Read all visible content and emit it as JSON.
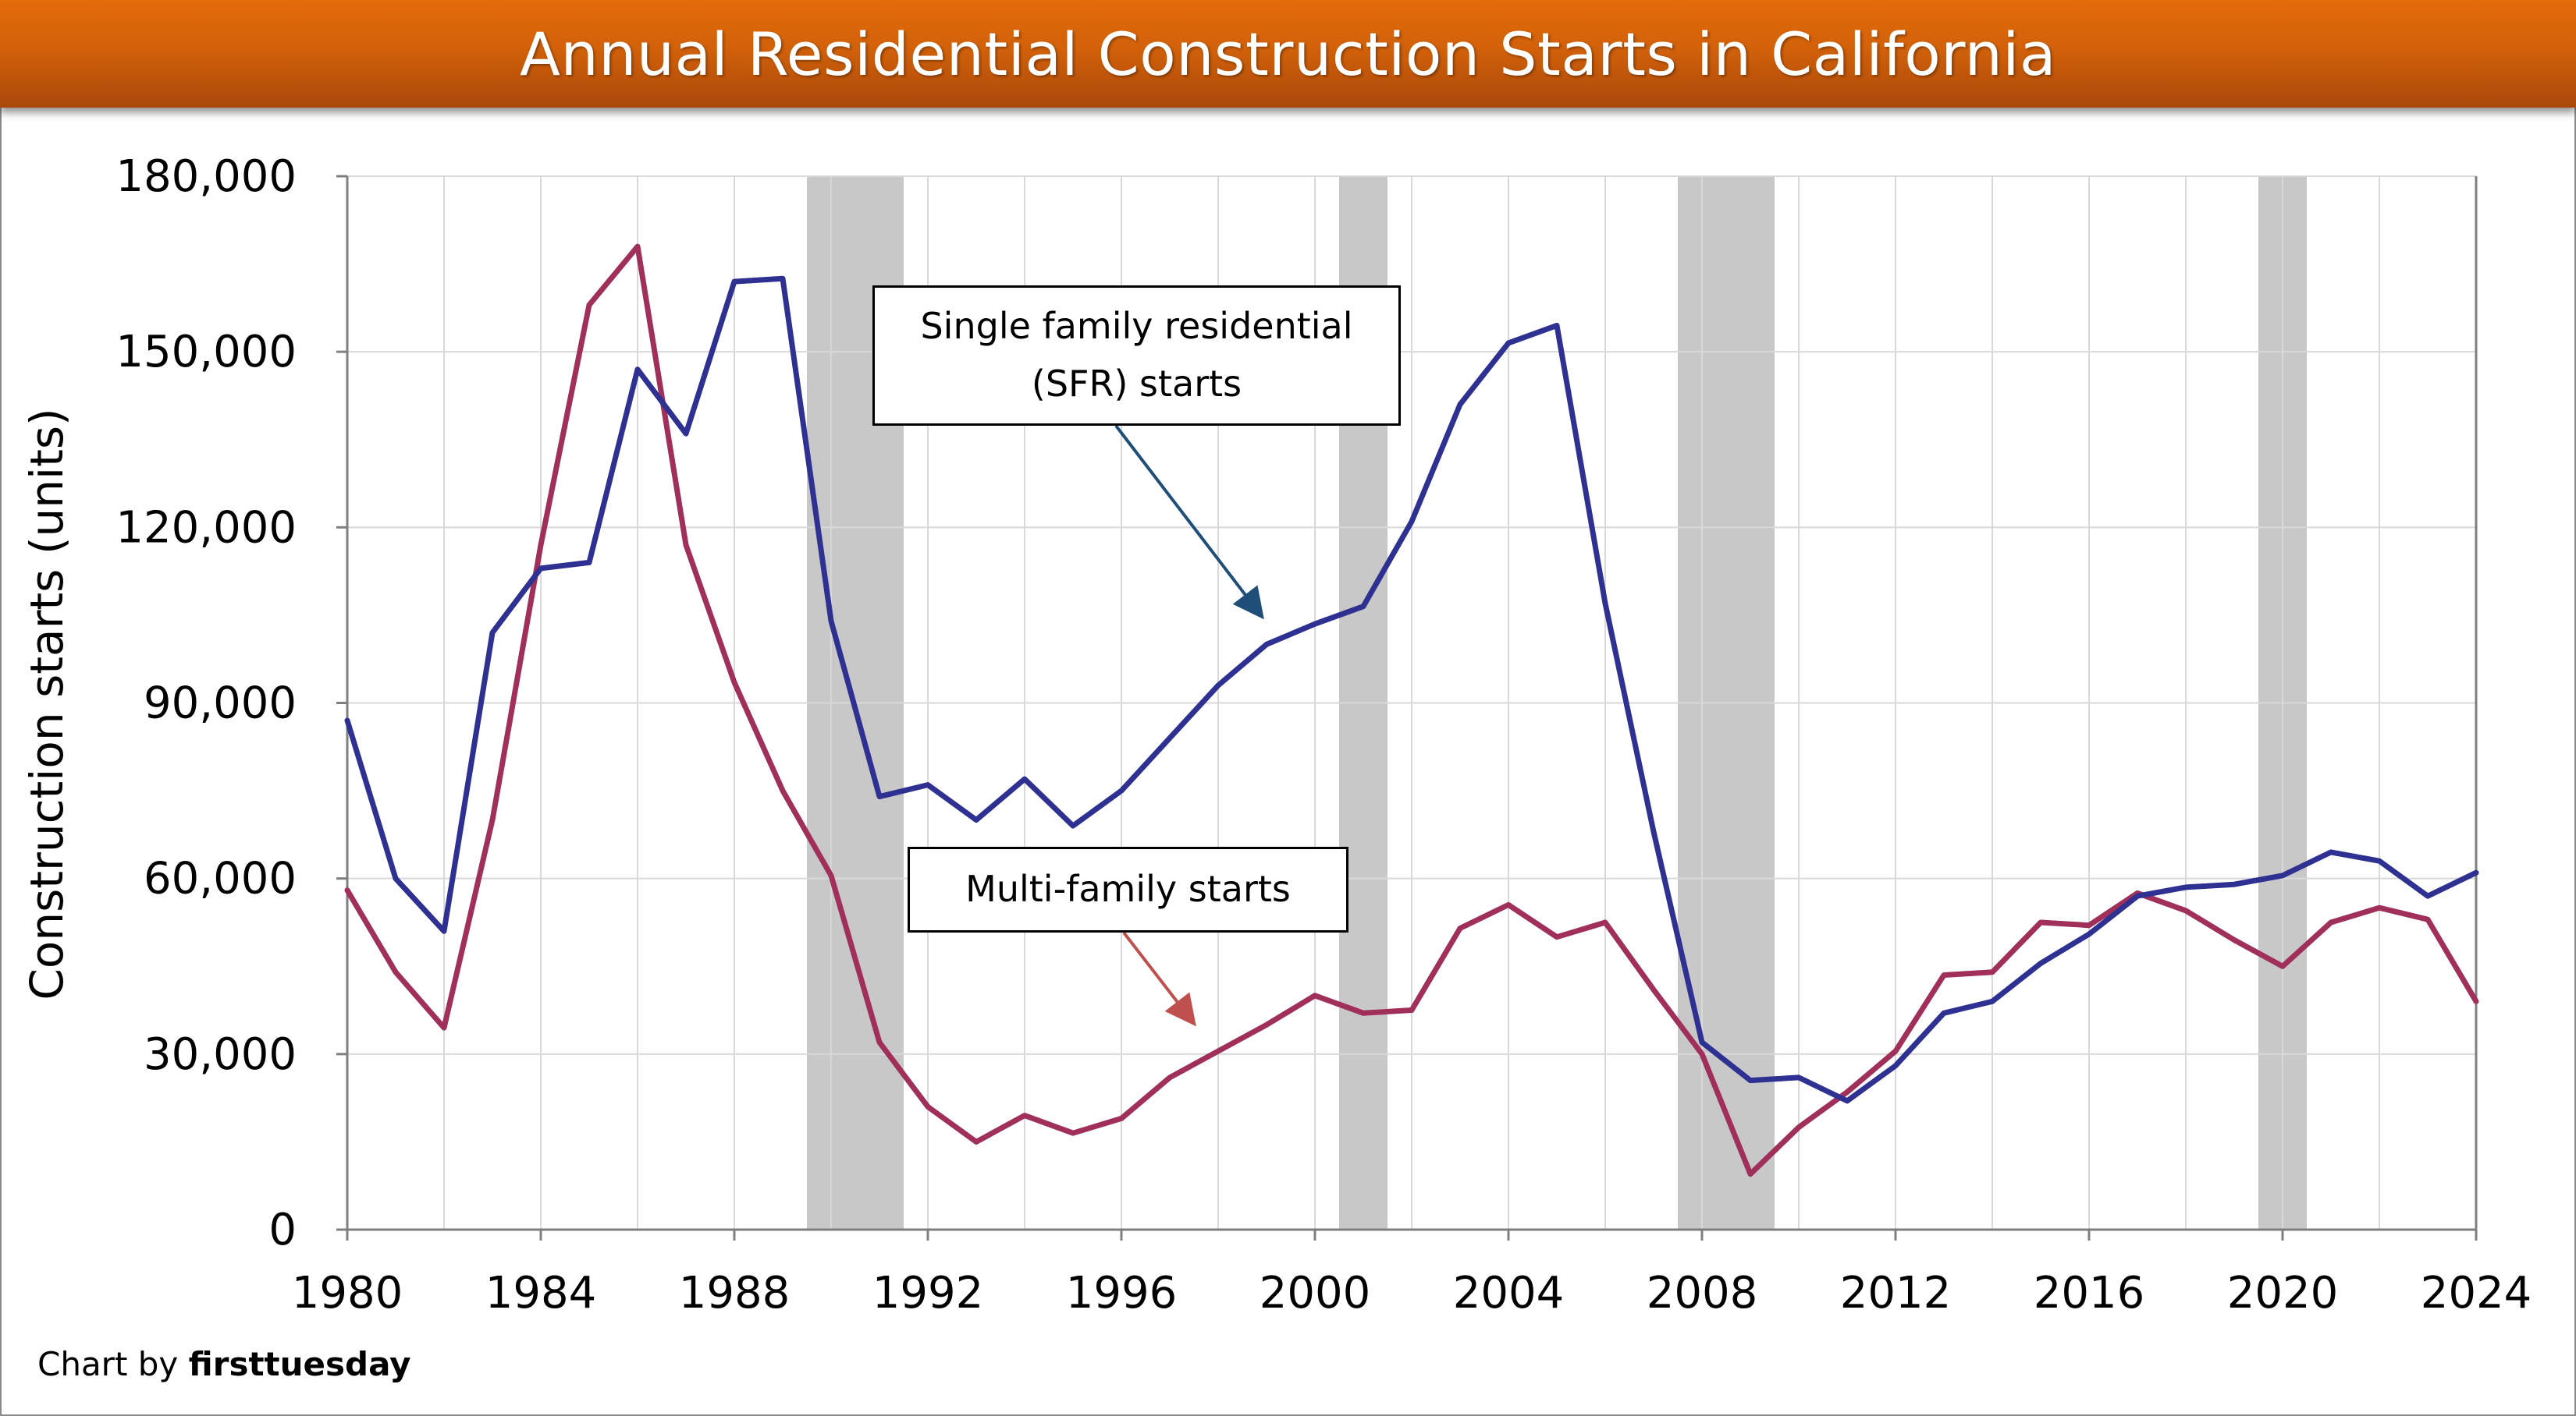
{
  "title": "Annual Residential Construction Starts in California",
  "credit": {
    "prefix": "Chart by ",
    "brand": "firsttuesday"
  },
  "annotations": {
    "sfr_line1": "Single family residential",
    "sfr_line2": "(SFR) starts",
    "multi": "Multi-family starts"
  },
  "colors": {
    "sfr": "#2e3192",
    "multi": "#a0305a",
    "recession": "#c8c8c8",
    "sfr_arrow": "#1f4e79",
    "multi_arrow": "#c0504d"
  },
  "chart_data": {
    "type": "line",
    "title": "Annual Residential Construction Starts in California",
    "xlabel": "",
    "ylabel": "Construction starts (units)",
    "xlim": [
      1980,
      2024
    ],
    "ylim": [
      0,
      180000
    ],
    "x_ticks": [
      "1980",
      "1984",
      "1988",
      "1992",
      "1996",
      "2000",
      "2004",
      "2008",
      "2012",
      "2016",
      "2020",
      "2024"
    ],
    "y_ticks": [
      "0",
      "30,000",
      "60,000",
      "90,000",
      "120,000",
      "150,000",
      "180,000"
    ],
    "grid": true,
    "recessions": [
      [
        1989.5,
        1991.5
      ],
      [
        2000.5,
        2001.5
      ],
      [
        2007.5,
        2009.5
      ],
      [
        2019.5,
        2020.5
      ]
    ],
    "x": [
      1980,
      1981,
      1982,
      1983,
      1984,
      1985,
      1986,
      1987,
      1988,
      1989,
      1990,
      1991,
      1992,
      1993,
      1994,
      1995,
      1996,
      1997,
      1998,
      1999,
      2000,
      2001,
      2002,
      2003,
      2004,
      2005,
      2006,
      2007,
      2008,
      2009,
      2010,
      2011,
      2012,
      2013,
      2014,
      2015,
      2016,
      2017,
      2018,
      2019,
      2020,
      2021,
      2022,
      2023,
      2024
    ],
    "series": [
      {
        "name": "Single family residential (SFR) starts",
        "values": [
          87000,
          60000,
          51000,
          102000,
          113000,
          114000,
          147000,
          136000,
          162000,
          162500,
          104000,
          74000,
          76000,
          70000,
          77000,
          69000,
          75000,
          84000,
          93000,
          100000,
          103500,
          106500,
          121000,
          141000,
          151500,
          154500,
          107000,
          68000,
          32000,
          25500,
          26000,
          22000,
          28000,
          37000,
          39000,
          45500,
          50500,
          57000,
          58500,
          59000,
          60500,
          64500,
          63000,
          57000,
          61000
        ]
      },
      {
        "name": "Multi-family starts",
        "values": [
          58000,
          44000,
          34500,
          70000,
          117000,
          158000,
          168000,
          117000,
          93500,
          75000,
          60500,
          32000,
          21000,
          15000,
          19500,
          16500,
          19000,
          26000,
          30500,
          35000,
          40000,
          37000,
          37500,
          51500,
          55500,
          50000,
          52500,
          41000,
          30000,
          9500,
          17500,
          23500,
          30500,
          43500,
          44000,
          52500,
          52000,
          57500,
          54500,
          49500,
          45000,
          52500,
          55000,
          53000,
          39000
        ]
      }
    ]
  }
}
